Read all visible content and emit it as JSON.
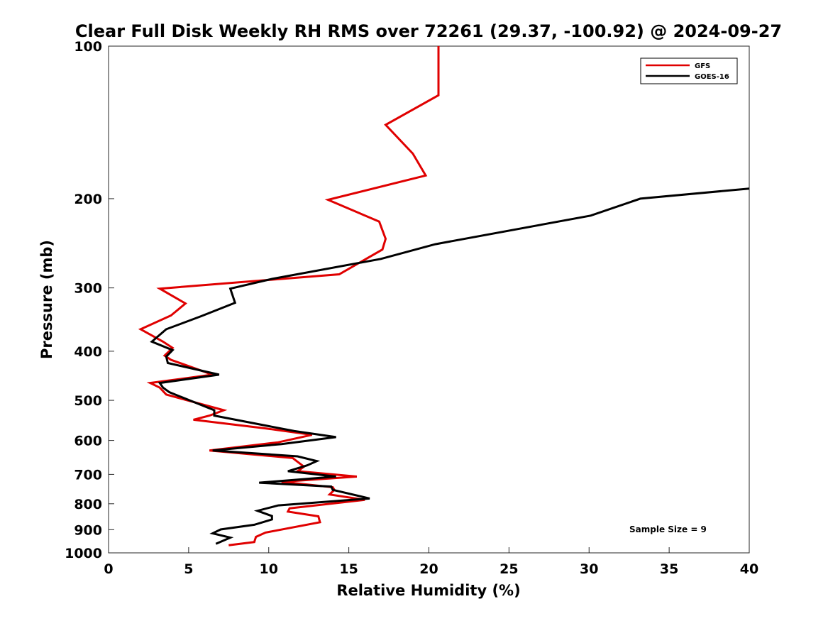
{
  "chart_data": {
    "type": "line",
    "title": "Clear Full Disk Weekly RH RMS over 72261 (29.37, -100.92) @ 2024-09-27",
    "xlabel": "Relative Humidity (%)",
    "ylabel": "Pressure (mb)",
    "xlim": [
      0,
      40
    ],
    "ylim": [
      100,
      1000
    ],
    "y_scale": "log",
    "y_reversed": true,
    "xticks": [
      0,
      5,
      10,
      15,
      20,
      25,
      30,
      35,
      40
    ],
    "yticks": [
      100,
      200,
      300,
      400,
      500,
      600,
      700,
      800,
      900,
      1000
    ],
    "grid": false,
    "legend_position": "top-right",
    "annotation": "Sample Size = 9",
    "series": [
      {
        "name": "GFS",
        "color": "#e00000",
        "points": [
          [
            20.6,
            100
          ],
          [
            20.6,
            125
          ],
          [
            17.3,
            143
          ],
          [
            19.0,
            163
          ],
          [
            19.8,
            180
          ],
          [
            13.7,
            201
          ],
          [
            16.9,
            222
          ],
          [
            17.3,
            240
          ],
          [
            17.1,
            252
          ],
          [
            14.4,
            282
          ],
          [
            3.2,
            301
          ],
          [
            4.8,
            322
          ],
          [
            3.9,
            340
          ],
          [
            2.0,
            362
          ],
          [
            3.4,
            383
          ],
          [
            4.0,
            394
          ],
          [
            3.5,
            408
          ],
          [
            3.9,
            416
          ],
          [
            6.5,
            445
          ],
          [
            2.6,
            462
          ],
          [
            3.2,
            472
          ],
          [
            3.6,
            487
          ],
          [
            7.2,
            523
          ],
          [
            6.3,
            536
          ],
          [
            5.3,
            546
          ],
          [
            9.8,
            568
          ],
          [
            12.7,
            585
          ],
          [
            10.6,
            605
          ],
          [
            6.3,
            628
          ],
          [
            11.5,
            650
          ],
          [
            12.2,
            676
          ],
          [
            11.8,
            690
          ],
          [
            15.5,
            707
          ],
          [
            10.8,
            724
          ],
          [
            14.0,
            742
          ],
          [
            14.1,
            751
          ],
          [
            13.8,
            767
          ],
          [
            16.0,
            786
          ],
          [
            11.3,
            817
          ],
          [
            11.2,
            829
          ],
          [
            13.1,
            847
          ],
          [
            13.2,
            870
          ],
          [
            9.8,
            912
          ],
          [
            9.2,
            930
          ],
          [
            9.1,
            952
          ],
          [
            7.5,
            966
          ]
        ]
      },
      {
        "name": "GOES-16",
        "color": "#000000",
        "points": [
          [
            40.0,
            191
          ],
          [
            33.2,
            200
          ],
          [
            30.1,
            216
          ],
          [
            20.4,
            246
          ],
          [
            17.0,
            263
          ],
          [
            10.2,
            288
          ],
          [
            7.6,
            301
          ],
          [
            7.9,
            321
          ],
          [
            5.8,
            341
          ],
          [
            3.6,
            362
          ],
          [
            2.7,
            383
          ],
          [
            4.0,
            398
          ],
          [
            3.6,
            410
          ],
          [
            3.7,
            422
          ],
          [
            6.9,
            445
          ],
          [
            3.2,
            462
          ],
          [
            3.4,
            472
          ],
          [
            3.8,
            482
          ],
          [
            6.6,
            523
          ],
          [
            6.6,
            536
          ],
          [
            11.6,
            575
          ],
          [
            14.2,
            591
          ],
          [
            10.8,
            610
          ],
          [
            6.5,
            628
          ],
          [
            11.8,
            645
          ],
          [
            13.0,
            659
          ],
          [
            12.4,
            672
          ],
          [
            11.2,
            690
          ],
          [
            14.2,
            707
          ],
          [
            9.4,
            727
          ],
          [
            13.9,
            740
          ],
          [
            14.0,
            751
          ],
          [
            16.3,
            781
          ],
          [
            10.6,
            806
          ],
          [
            9.3,
            826
          ],
          [
            10.2,
            846
          ],
          [
            10.2,
            859
          ],
          [
            9.1,
            880
          ],
          [
            7.0,
            899
          ],
          [
            6.5,
            915
          ],
          [
            7.6,
            933
          ],
          [
            6.7,
            960
          ]
        ]
      }
    ]
  }
}
